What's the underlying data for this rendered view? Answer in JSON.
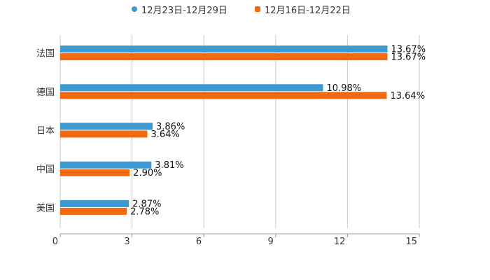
{
  "chart_data": {
    "type": "bar",
    "orientation": "horizontal",
    "categories": [
      "法国",
      "德国",
      "日本",
      "中国",
      "美国"
    ],
    "series": [
      {
        "name": "12月23日-12月29日",
        "color": "#3d9ad1",
        "marker": "circle",
        "values": [
          13.67,
          10.98,
          3.86,
          3.81,
          2.87
        ],
        "labels": [
          "13.67%",
          "10.98%",
          "3.86%",
          "3.81%",
          "2.87%"
        ]
      },
      {
        "name": "12月16日-12月22日",
        "color": "#f26a10",
        "marker": "square",
        "values": [
          13.67,
          13.64,
          3.64,
          2.9,
          2.78
        ],
        "labels": [
          "13.67%",
          "13.64%",
          "3.64%",
          "2.90%",
          "2.78%"
        ]
      }
    ],
    "xlim": [
      0,
      15
    ],
    "xticks": [
      0,
      3,
      6,
      9,
      12,
      15
    ],
    "xtick_labels": [
      "0",
      "3",
      "6",
      "9",
      "12",
      "15"
    ],
    "grid": "vertical",
    "legend": "top-center",
    "title": "",
    "xlabel": "",
    "ylabel": ""
  }
}
